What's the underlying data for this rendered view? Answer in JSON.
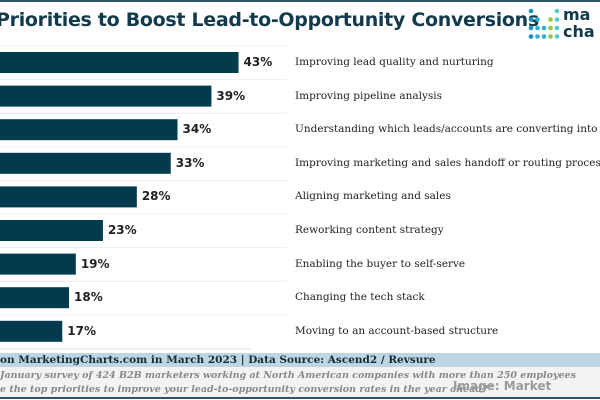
{
  "chart_data": {
    "type": "bar",
    "orientation": "horizontal",
    "title": "Priorities to Boost Lead-to-Opportunity Conversions",
    "categories": [
      "Improving lead quality and nurturing",
      "Improving pipeline analysis",
      "Understanding which leads/accounts are converting into pi",
      "Improving marketing and sales handoff or routing processe",
      "Aligning marketing and sales",
      "Reworking content strategy",
      "Enabling the buyer to self-serve",
      "Changing the tech stack",
      "Moving to an account-based structure"
    ],
    "values": [
      43,
      39,
      34,
      33,
      28,
      23,
      19,
      18,
      17
    ],
    "value_labels": [
      "43%",
      "39%",
      "34%",
      "33%",
      "28%",
      "23%",
      "19%",
      "18%",
      "17%"
    ],
    "unit": "%",
    "bar_color": "#033b4e",
    "xlabel": "",
    "ylabel": ""
  },
  "logo": {
    "text_line1": "ma",
    "text_line2": "cha"
  },
  "footer": {
    "published": "on MarketingCharts.com in March 2023 | Data Source: Ascend2 / Revsure",
    "note1": "January survey of 424 B2B marketers working at North American companies with more than 250 employees",
    "note2": "e the top priorities to improve your lead-to-opportunity conversion rates in the year ahead?\"",
    "credit": "Image: Market"
  }
}
